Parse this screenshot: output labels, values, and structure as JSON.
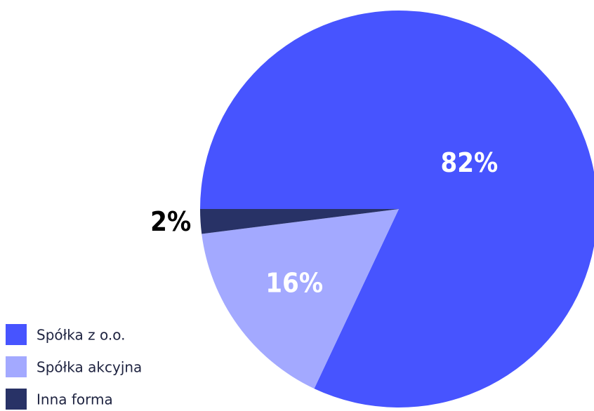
{
  "chart_data": {
    "type": "pie",
    "categories": [
      "Spółka z o.o.",
      "Spółka akcyjna",
      "Inna forma"
    ],
    "values": [
      82,
      16,
      2
    ],
    "value_labels": [
      "82%",
      "16%",
      "2%"
    ],
    "colors": [
      "#4754ff",
      "#a3a9ff",
      "#283266"
    ]
  }
}
